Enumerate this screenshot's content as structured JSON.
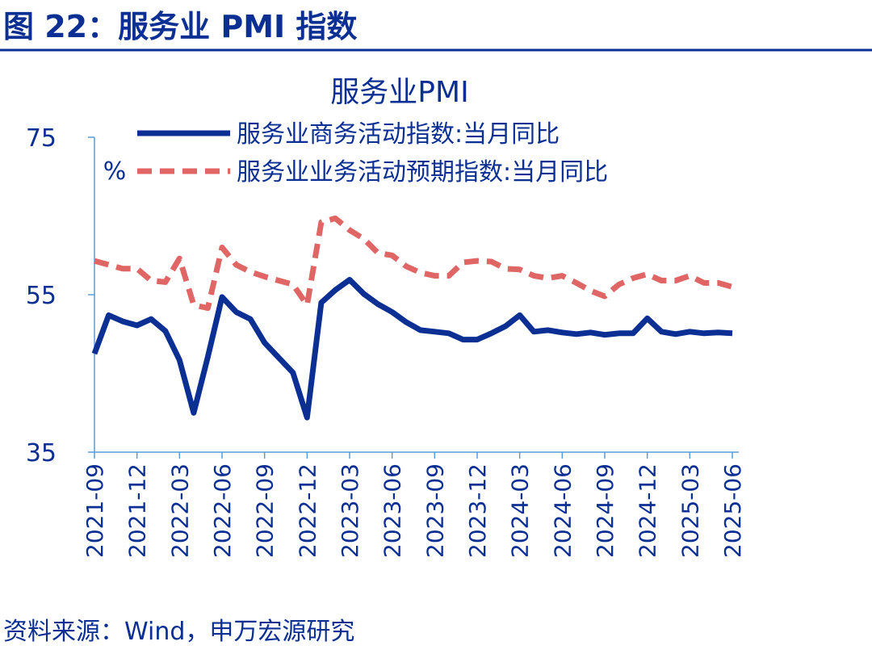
{
  "header": {
    "title": "图 22：服务业 PMI 指数"
  },
  "chart_data": {
    "type": "line",
    "title": "服务业PMI",
    "y_unit": "%",
    "categories": [
      "2021-09",
      null,
      null,
      "2021-12",
      null,
      null,
      "2022-03",
      null,
      null,
      "2022-06",
      null,
      null,
      "2022-09",
      null,
      null,
      "2022-12",
      null,
      null,
      "2023-03",
      null,
      null,
      "2023-06",
      null,
      null,
      "2023-09",
      null,
      null,
      "2023-12",
      null,
      null,
      "2024-03",
      null,
      null,
      "2024-06",
      null,
      null,
      "2024-09",
      null,
      null,
      "2024-12",
      null,
      null,
      "2025-03",
      null,
      null,
      "2025-06"
    ],
    "series": [
      {
        "name": "服务业商务活动指数:当月同比",
        "color": "#0b2f93",
        "dash": false,
        "values": [
          47.5,
          52.4,
          51.6,
          51.1,
          51.9,
          50.4,
          46.7,
          40.0,
          47.1,
          54.7,
          52.8,
          51.9,
          48.9,
          47.0,
          45.1,
          39.4,
          54.0,
          55.6,
          56.9,
          55.1,
          53.8,
          52.8,
          51.5,
          50.5,
          50.3,
          50.1,
          49.3,
          49.3,
          50.1,
          51.0,
          52.4,
          50.3,
          50.5,
          50.2,
          50.0,
          50.2,
          49.9,
          50.1,
          50.1,
          52.0,
          50.3,
          50.0,
          50.3,
          50.1,
          50.2,
          50.1
        ]
      },
      {
        "name": "服务业业务活动预期指数:当月同比",
        "color": "#e06666",
        "dash": true,
        "values": [
          59.3,
          58.8,
          58.3,
          58.3,
          56.8,
          56.6,
          59.6,
          53.7,
          53.3,
          61.0,
          58.8,
          57.9,
          57.3,
          56.8,
          56.3,
          53.7,
          64.2,
          64.7,
          63.2,
          62.1,
          60.3,
          60.0,
          58.6,
          57.8,
          57.4,
          57.4,
          59.1,
          59.3,
          59.2,
          58.3,
          58.2,
          57.4,
          57.1,
          57.4,
          56.5,
          55.5,
          54.8,
          56.3,
          57.1,
          57.6,
          56.8,
          56.8,
          57.4,
          56.5,
          56.5,
          56.0
        ]
      }
    ],
    "ylim": [
      35,
      75
    ],
    "yticks": [
      35,
      55,
      75
    ],
    "grid": false
  },
  "footer": {
    "source": "资料来源：Wind，申万宏源研究"
  }
}
